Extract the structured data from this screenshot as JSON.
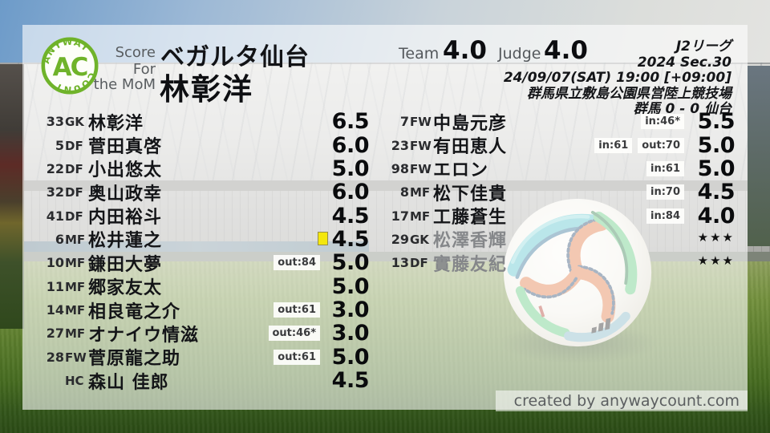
{
  "logo": {
    "top_text": "ANYWAY",
    "center_text": "AC",
    "bottom_text": "COUNT"
  },
  "header": {
    "score_for_label": "Score For",
    "team_name": "ベガルタ仙台",
    "mom_label": "the MoM",
    "mom_name": "林彰洋",
    "team_label": "Team",
    "team_score": "4.0",
    "judge_label": "Judge",
    "judge_score": "4.0"
  },
  "match_info": {
    "league": "J2リーグ",
    "season": "2024 Sec.30",
    "kickoff": "24/09/07(SAT) 19:00 [+09:00]",
    "venue": "群馬県立敷島公園県営陸上競技場",
    "result": "群馬 0 - 0 仙台"
  },
  "players_left": [
    {
      "num": "33",
      "pos": "GK",
      "name": "林彰洋",
      "badges": [],
      "score": "6.5"
    },
    {
      "num": "5",
      "pos": "DF",
      "name": "菅田真啓",
      "badges": [],
      "score": "6.0"
    },
    {
      "num": "22",
      "pos": "DF",
      "name": "小出悠太",
      "badges": [],
      "score": "5.0"
    },
    {
      "num": "32",
      "pos": "DF",
      "name": "奥山政幸",
      "badges": [],
      "score": "6.0"
    },
    {
      "num": "41",
      "pos": "DF",
      "name": "内田裕斗",
      "badges": [],
      "score": "4.5"
    },
    {
      "num": "6",
      "pos": "MF",
      "name": "松井蓮之",
      "badges": [],
      "yellow_card": true,
      "score": "4.5"
    },
    {
      "num": "10",
      "pos": "MF",
      "name": "鎌田大夢",
      "badges": [
        "out:84"
      ],
      "score": "5.0"
    },
    {
      "num": "11",
      "pos": "MF",
      "name": "郷家友太",
      "badges": [],
      "score": "5.0"
    },
    {
      "num": "14",
      "pos": "MF",
      "name": "相良竜之介",
      "badges": [
        "out:61"
      ],
      "score": "3.0"
    },
    {
      "num": "27",
      "pos": "MF",
      "name": "オナイウ情滋",
      "badges": [
        "out:46*"
      ],
      "score": "3.0"
    },
    {
      "num": "28",
      "pos": "FW",
      "name": "菅原龍之助",
      "badges": [
        "out:61"
      ],
      "score": "5.0"
    },
    {
      "num": "",
      "pos": "HC",
      "name": "森山 佳郎",
      "badges": [],
      "score": "4.5"
    }
  ],
  "players_right": [
    {
      "num": "7",
      "pos": "FW",
      "name": "中島元彦",
      "badges": [
        "in:46*"
      ],
      "score": "5.5"
    },
    {
      "num": "23",
      "pos": "FW",
      "name": "有田恵人",
      "badges": [
        "in:61",
        "out:70"
      ],
      "score": "5.0"
    },
    {
      "num": "98",
      "pos": "FW",
      "name": "エロン",
      "badges": [
        "in:61"
      ],
      "score": "5.0"
    },
    {
      "num": "8",
      "pos": "MF",
      "name": "松下佳貴",
      "badges": [
        "in:70"
      ],
      "score": "4.5"
    },
    {
      "num": "17",
      "pos": "MF",
      "name": "工藤蒼生",
      "badges": [
        "in:84"
      ],
      "score": "4.0"
    },
    {
      "num": "29",
      "pos": "GK",
      "name": "松澤香輝",
      "badges": [],
      "stars": "★★★",
      "muted": true
    },
    {
      "num": "13",
      "pos": "DF",
      "name": "實藤友紀",
      "badges": [],
      "stars": "★★★",
      "muted": true
    }
  ],
  "footer": {
    "credit": "created by anywaycount.com"
  },
  "colors": {
    "accent_green": "#6fb32a",
    "yellow_card": "#f4e70d"
  },
  "chart_data": {
    "type": "table",
    "title": "ベガルタ仙台 player ratings — J2リーグ 2024 Sec.30 (群馬 0 - 0 仙台)",
    "columns": [
      "number",
      "position",
      "player",
      "sub_events",
      "rating"
    ],
    "rows": [
      [
        "33",
        "GK",
        "林彰洋",
        "",
        6.5
      ],
      [
        "5",
        "DF",
        "菅田真啓",
        "",
        6.0
      ],
      [
        "22",
        "DF",
        "小出悠太",
        "",
        5.0
      ],
      [
        "32",
        "DF",
        "奥山政幸",
        "",
        6.0
      ],
      [
        "41",
        "DF",
        "内田裕斗",
        "",
        4.5
      ],
      [
        "6",
        "MF",
        "松井蓮之",
        "yellow card",
        4.5
      ],
      [
        "10",
        "MF",
        "鎌田大夢",
        "out:84",
        5.0
      ],
      [
        "11",
        "MF",
        "郷家友太",
        "",
        5.0
      ],
      [
        "14",
        "MF",
        "相良竜之介",
        "out:61",
        3.0
      ],
      [
        "27",
        "MF",
        "オナイウ情滋",
        "out:46*",
        3.0
      ],
      [
        "28",
        "FW",
        "菅原龍之助",
        "out:61",
        5.0
      ],
      [
        "",
        "HC",
        "森山 佳郎",
        "",
        4.5
      ],
      [
        "7",
        "FW",
        "中島元彦",
        "in:46*",
        5.5
      ],
      [
        "23",
        "FW",
        "有田恵人",
        "in:61 out:70",
        5.0
      ],
      [
        "98",
        "FW",
        "エロン",
        "in:61",
        5.0
      ],
      [
        "8",
        "MF",
        "松下佳貴",
        "in:70",
        4.5
      ],
      [
        "17",
        "MF",
        "工藤蒼生",
        "in:84",
        4.0
      ],
      [
        "29",
        "GK",
        "松澤香輝",
        "unused",
        null
      ],
      [
        "13",
        "DF",
        "實藤友紀",
        "unused",
        null
      ]
    ],
    "team_rating": 4.0,
    "judge_rating": 4.0
  }
}
